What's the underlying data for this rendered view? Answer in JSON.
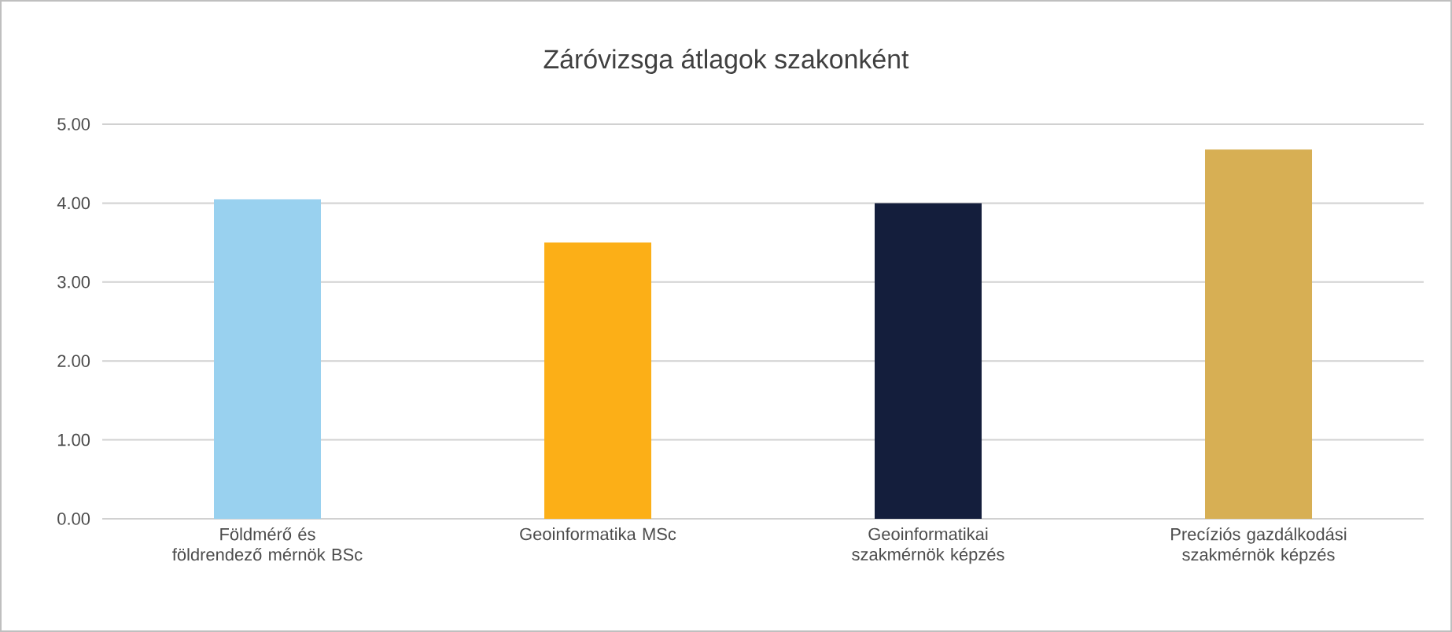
{
  "chart_data": {
    "type": "bar",
    "title": "Záróvizsga átlagok szakonként",
    "categories": [
      "Földmérő és földrendező mérnök BSc",
      "Geoinformatika MSc",
      "Geoinformatikai szakmérnök képzés",
      "Precíziós gazdálkodási szakmérnök képzés"
    ],
    "values": [
      4.05,
      3.5,
      4.0,
      4.68
    ],
    "colors": [
      "#99d1ef",
      "#fcaf17",
      "#141e3c",
      "#d7af54"
    ],
    "ylim": [
      0,
      5
    ],
    "yticks": [
      {
        "value": 0,
        "label": "0.00"
      },
      {
        "value": 1,
        "label": "1.00"
      },
      {
        "value": 2,
        "label": "2.00"
      },
      {
        "value": 3,
        "label": "3.00"
      },
      {
        "value": 4,
        "label": "4.00"
      },
      {
        "value": 5,
        "label": "5.00"
      }
    ],
    "grid": "y"
  }
}
